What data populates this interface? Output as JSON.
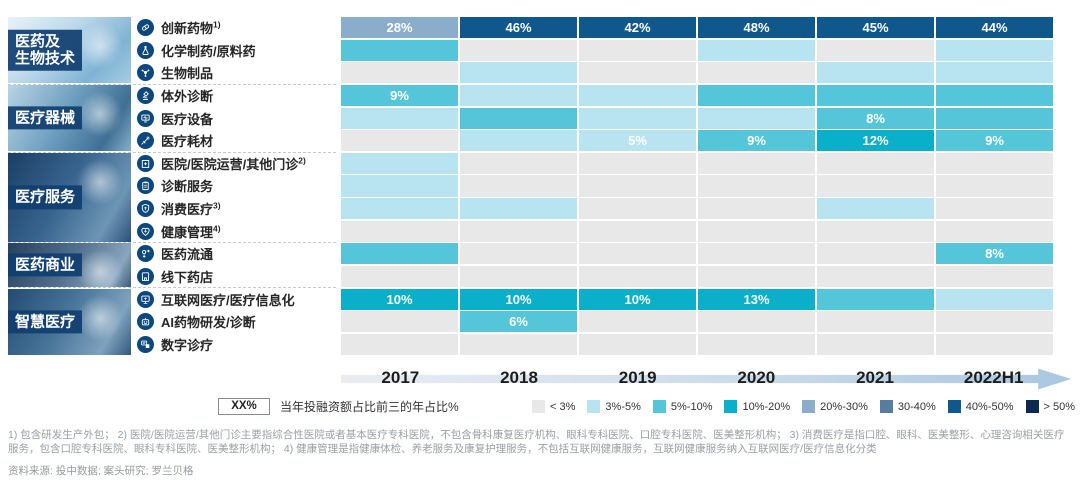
{
  "chart_data": {
    "type": "heatmap",
    "columns": [
      "2017",
      "2018",
      "2019",
      "2020",
      "2021",
      "2022H1"
    ],
    "bands": [
      {
        "label": "< 3%",
        "color": "#e8e8e8"
      },
      {
        "label": "3%-5%",
        "color": "#b7e4f0"
      },
      {
        "label": "5%-10%",
        "color": "#55c6d9"
      },
      {
        "label": "10%-20%",
        "color": "#0aafca"
      },
      {
        "label": "20%-30%",
        "color": "#8aadcb"
      },
      {
        "label": "30-40%",
        "color": "#567d9e"
      },
      {
        "label": "40%-50%",
        "color": "#10588c"
      },
      {
        "label": "> 50%",
        "color": "#0b2a52"
      }
    ],
    "groups": [
      {
        "label_lines": [
          "医药及",
          "生物技术"
        ],
        "row_indices": [
          0,
          1,
          2
        ],
        "photo": "category-photo-pharma-biotech"
      },
      {
        "label_lines": [
          "医疗器械"
        ],
        "row_indices": [
          3,
          4,
          5
        ],
        "photo": "category-photo-medical-devices"
      },
      {
        "label_lines": [
          "医疗服务"
        ],
        "row_indices": [
          6,
          7,
          8,
          9
        ],
        "photo": "category-photo-medical-services"
      },
      {
        "label_lines": [
          "医药商业"
        ],
        "row_indices": [
          10,
          11
        ],
        "photo": "category-photo-pharma-commerce"
      },
      {
        "label_lines": [
          "智慧医疗"
        ],
        "row_indices": [
          12,
          13,
          14
        ],
        "photo": "category-photo-smart-healthcare"
      }
    ],
    "rows": [
      {
        "label": "创新药物",
        "sup": "1)",
        "icon": "pill-icon",
        "cells": [
          {
            "b": 4,
            "t": "28%"
          },
          {
            "b": 6,
            "t": "46%"
          },
          {
            "b": 6,
            "t": "42%"
          },
          {
            "b": 6,
            "t": "48%"
          },
          {
            "b": 6,
            "t": "45%"
          },
          {
            "b": 6,
            "t": "44%"
          }
        ]
      },
      {
        "label": "化学制药/原料药",
        "sup": "",
        "icon": "flask-icon",
        "cells": [
          {
            "b": 2,
            "t": ""
          },
          {
            "b": 0,
            "t": ""
          },
          {
            "b": 0,
            "t": ""
          },
          {
            "b": 1,
            "t": ""
          },
          {
            "b": 0,
            "t": ""
          },
          {
            "b": 1,
            "t": ""
          }
        ]
      },
      {
        "label": "生物制品",
        "sup": "",
        "icon": "molecule-icon",
        "cells": [
          {
            "b": 0,
            "t": ""
          },
          {
            "b": 1,
            "t": ""
          },
          {
            "b": 0,
            "t": ""
          },
          {
            "b": 0,
            "t": ""
          },
          {
            "b": 1,
            "t": ""
          },
          {
            "b": 1,
            "t": ""
          }
        ]
      },
      {
        "label": "体外诊断",
        "sup": "",
        "icon": "microscope-icon",
        "cells": [
          {
            "b": 2,
            "t": "9%"
          },
          {
            "b": 1,
            "t": ""
          },
          {
            "b": 1,
            "t": ""
          },
          {
            "b": 2,
            "t": ""
          },
          {
            "b": 2,
            "t": ""
          },
          {
            "b": 2,
            "t": ""
          }
        ]
      },
      {
        "label": "医疗设备",
        "sup": "",
        "icon": "medical-device-icon",
        "cells": [
          {
            "b": 1,
            "t": ""
          },
          {
            "b": 2,
            "t": ""
          },
          {
            "b": 1,
            "t": ""
          },
          {
            "b": 1,
            "t": ""
          },
          {
            "b": 2,
            "t": "8%"
          },
          {
            "b": 2,
            "t": ""
          }
        ]
      },
      {
        "label": "医疗耗材",
        "sup": "",
        "icon": "syringe-icon",
        "cells": [
          {
            "b": 0,
            "t": ""
          },
          {
            "b": 1,
            "t": ""
          },
          {
            "b": 1,
            "t": "5%"
          },
          {
            "b": 2,
            "t": "9%"
          },
          {
            "b": 3,
            "t": "12%"
          },
          {
            "b": 2,
            "t": "9%"
          }
        ]
      },
      {
        "label": "医院/医院运营/其他门诊",
        "sup": "2)",
        "icon": "hospital-icon",
        "cells": [
          {
            "b": 1,
            "t": ""
          },
          {
            "b": 0,
            "t": ""
          },
          {
            "b": 0,
            "t": ""
          },
          {
            "b": 0,
            "t": ""
          },
          {
            "b": 0,
            "t": ""
          },
          {
            "b": 0,
            "t": ""
          }
        ]
      },
      {
        "label": "诊断服务",
        "sup": "",
        "icon": "clipboard-icon",
        "cells": [
          {
            "b": 1,
            "t": ""
          },
          {
            "b": 0,
            "t": ""
          },
          {
            "b": 0,
            "t": ""
          },
          {
            "b": 0,
            "t": ""
          },
          {
            "b": 0,
            "t": ""
          },
          {
            "b": 0,
            "t": ""
          }
        ]
      },
      {
        "label": "消费医疗",
        "sup": "3)",
        "icon": "shield-icon",
        "cells": [
          {
            "b": 1,
            "t": ""
          },
          {
            "b": 1,
            "t": ""
          },
          {
            "b": 0,
            "t": ""
          },
          {
            "b": 0,
            "t": ""
          },
          {
            "b": 1,
            "t": ""
          },
          {
            "b": 0,
            "t": ""
          }
        ]
      },
      {
        "label": "健康管理",
        "sup": "4)",
        "icon": "health-management-icon",
        "cells": [
          {
            "b": 0,
            "t": ""
          },
          {
            "b": 0,
            "t": ""
          },
          {
            "b": 0,
            "t": ""
          },
          {
            "b": 0,
            "t": ""
          },
          {
            "b": 0,
            "t": ""
          },
          {
            "b": 0,
            "t": ""
          }
        ]
      },
      {
        "label": "医药流通",
        "sup": "",
        "icon": "distribution-icon",
        "cells": [
          {
            "b": 2,
            "t": ""
          },
          {
            "b": 0,
            "t": ""
          },
          {
            "b": 0,
            "t": ""
          },
          {
            "b": 0,
            "t": ""
          },
          {
            "b": 0,
            "t": ""
          },
          {
            "b": 2,
            "t": "8%"
          }
        ]
      },
      {
        "label": "线下药店",
        "sup": "",
        "icon": "pharmacy-store-icon",
        "cells": [
          {
            "b": 0,
            "t": ""
          },
          {
            "b": 0,
            "t": ""
          },
          {
            "b": 0,
            "t": ""
          },
          {
            "b": 0,
            "t": ""
          },
          {
            "b": 0,
            "t": ""
          },
          {
            "b": 0,
            "t": ""
          }
        ]
      },
      {
        "label": "互联网医疗/医疗信息化",
        "sup": "",
        "icon": "internet-healthcare-icon",
        "cells": [
          {
            "b": 3,
            "t": "10%"
          },
          {
            "b": 3,
            "t": "10%"
          },
          {
            "b": 3,
            "t": "10%"
          },
          {
            "b": 3,
            "t": "13%"
          },
          {
            "b": 2,
            "t": ""
          },
          {
            "b": 1,
            "t": ""
          }
        ]
      },
      {
        "label": "AI药物研发/诊断",
        "sup": "",
        "icon": "ai-robot-icon",
        "cells": [
          {
            "b": 0,
            "t": ""
          },
          {
            "b": 2,
            "t": "6%"
          },
          {
            "b": 0,
            "t": ""
          },
          {
            "b": 0,
            "t": ""
          },
          {
            "b": 0,
            "t": ""
          },
          {
            "b": 0,
            "t": ""
          }
        ]
      },
      {
        "label": "数字诊疗",
        "sup": "",
        "icon": "digital-diagnosis-icon",
        "cells": [
          {
            "b": 0,
            "t": ""
          },
          {
            "b": 0,
            "t": ""
          },
          {
            "b": 0,
            "t": ""
          },
          {
            "b": 0,
            "t": ""
          },
          {
            "b": 0,
            "t": ""
          },
          {
            "b": 0,
            "t": ""
          }
        ]
      }
    ]
  },
  "legend": {
    "xx_label": "XX%",
    "xx_desc": "当年投融资额占比前三的年占比%"
  },
  "footnotes": {
    "text": "1) 包含研发生产外包；  2)  医院/医院运营/其他门诊主要指综合性医院或者基本医疗专科医院，不包含骨科康复医疗机构、眼科专科医院、口腔专科医院、医美整形机构；  3)  消费医疗是指口腔、眼科、医美整形、心理咨询相关医疗服务，包含口腔专科医院、眼科专科医院、医美整形机构；  4)  健康管理是指健康体检、养老服务及康复护理服务，不包括互联网健康服务，互联网健康服务纳入互联网医疗/医疗信息化分类"
  },
  "source": {
    "text": "资料来源:  投中数据;  案头研究;  罗兰贝格"
  }
}
